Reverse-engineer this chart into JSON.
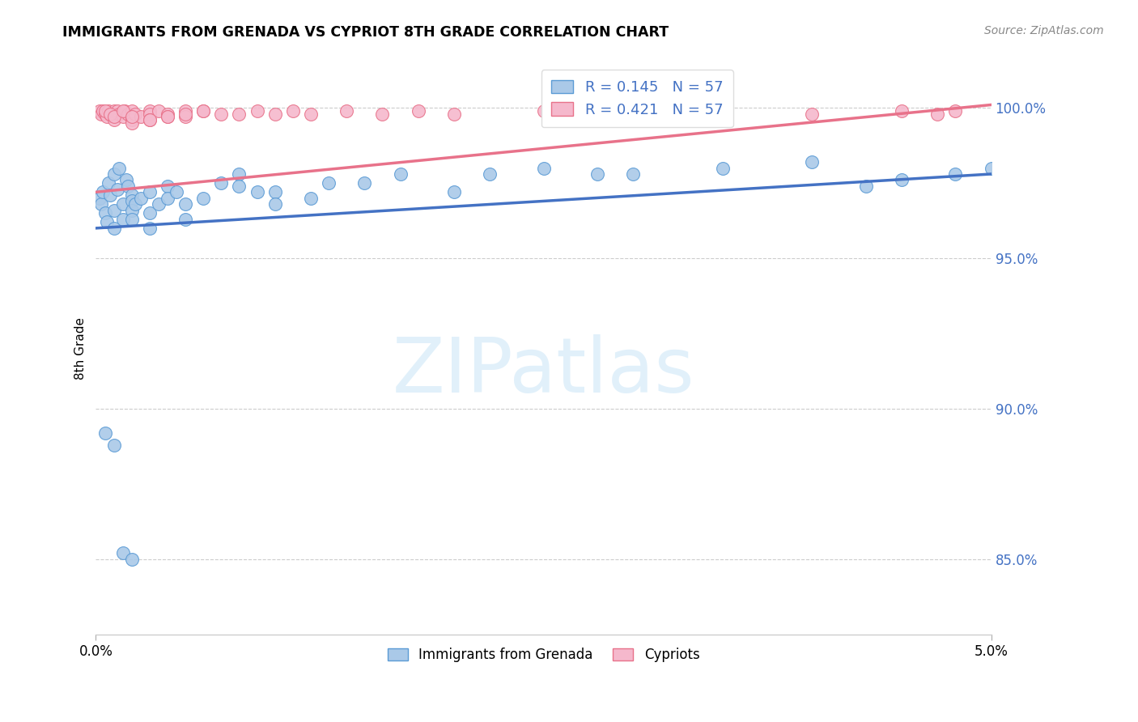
{
  "title": "IMMIGRANTS FROM GRENADA VS CYPRIOT 8TH GRADE CORRELATION CHART",
  "source": "Source: ZipAtlas.com",
  "ylabel": "8th Grade",
  "legend_blue_label": "Immigrants from Grenada",
  "legend_pink_label": "Cypriots",
  "R_blue": 0.145,
  "N_blue": 57,
  "R_pink": 0.421,
  "N_pink": 57,
  "blue_color": "#aac9e8",
  "pink_color": "#f5b8cc",
  "blue_edge_color": "#5b9bd5",
  "pink_edge_color": "#e8728a",
  "blue_line_color": "#4472c4",
  "pink_line_color": "#e8728a",
  "xlim": [
    0.0,
    0.05
  ],
  "ylim": [
    0.825,
    1.015
  ],
  "yticks": [
    0.85,
    0.9,
    0.95,
    1.0
  ],
  "ytick_labels": [
    "85.0%",
    "90.0%",
    "95.0%",
    "100.0%"
  ],
  "xticks": [
    0.0,
    0.05
  ],
  "xtick_labels": [
    "0.0%",
    "5.0%"
  ],
  "blue_x": [
    0.0002,
    0.0003,
    0.0004,
    0.0005,
    0.0006,
    0.0007,
    0.0008,
    0.001,
    0.001,
    0.001,
    0.0012,
    0.0013,
    0.0015,
    0.0015,
    0.0017,
    0.0018,
    0.002,
    0.002,
    0.002,
    0.002,
    0.0022,
    0.0025,
    0.003,
    0.003,
    0.003,
    0.0035,
    0.004,
    0.004,
    0.0045,
    0.005,
    0.005,
    0.006,
    0.007,
    0.008,
    0.008,
    0.009,
    0.01,
    0.01,
    0.012,
    0.013,
    0.015,
    0.017,
    0.02,
    0.022,
    0.025,
    0.028,
    0.03,
    0.035,
    0.04,
    0.043,
    0.045,
    0.048,
    0.05,
    0.0005,
    0.001,
    0.0015,
    0.002
  ],
  "blue_y": [
    0.97,
    0.968,
    0.972,
    0.965,
    0.962,
    0.975,
    0.971,
    0.978,
    0.966,
    0.96,
    0.973,
    0.98,
    0.968,
    0.963,
    0.976,
    0.974,
    0.971,
    0.969,
    0.966,
    0.963,
    0.968,
    0.97,
    0.972,
    0.965,
    0.96,
    0.968,
    0.974,
    0.97,
    0.972,
    0.968,
    0.963,
    0.97,
    0.975,
    0.978,
    0.974,
    0.972,
    0.972,
    0.968,
    0.97,
    0.975,
    0.975,
    0.978,
    0.972,
    0.978,
    0.98,
    0.978,
    0.978,
    0.98,
    0.982,
    0.974,
    0.976,
    0.978,
    0.98,
    0.892,
    0.888,
    0.852,
    0.85
  ],
  "pink_x": [
    0.0002,
    0.0003,
    0.0004,
    0.0005,
    0.0006,
    0.0007,
    0.0008,
    0.001,
    0.001,
    0.001,
    0.001,
    0.0012,
    0.0013,
    0.0015,
    0.0016,
    0.0018,
    0.002,
    0.002,
    0.002,
    0.002,
    0.0022,
    0.0025,
    0.003,
    0.003,
    0.003,
    0.0035,
    0.004,
    0.004,
    0.005,
    0.005,
    0.006,
    0.007,
    0.008,
    0.009,
    0.01,
    0.011,
    0.012,
    0.014,
    0.016,
    0.018,
    0.02,
    0.025,
    0.03,
    0.035,
    0.04,
    0.045,
    0.047,
    0.048,
    0.0005,
    0.0008,
    0.001,
    0.0015,
    0.002,
    0.003,
    0.004,
    0.005,
    0.006
  ],
  "pink_y": [
    0.999,
    0.998,
    0.999,
    0.998,
    0.997,
    0.999,
    0.998,
    0.999,
    0.998,
    0.997,
    0.996,
    0.999,
    0.998,
    0.997,
    0.999,
    0.998,
    0.999,
    0.997,
    0.996,
    0.995,
    0.998,
    0.997,
    0.999,
    0.998,
    0.996,
    0.999,
    0.998,
    0.997,
    0.999,
    0.997,
    0.999,
    0.998,
    0.998,
    0.999,
    0.998,
    0.999,
    0.998,
    0.999,
    0.998,
    0.999,
    0.998,
    0.999,
    0.998,
    0.999,
    0.998,
    0.999,
    0.998,
    0.999,
    0.999,
    0.998,
    0.997,
    0.999,
    0.997,
    0.996,
    0.997,
    0.998,
    0.999
  ],
  "blue_line_x0": 0.0,
  "blue_line_x1": 0.05,
  "blue_line_y0": 0.96,
  "blue_line_y1": 0.978,
  "pink_line_x0": 0.0,
  "pink_line_x1": 0.05,
  "pink_line_y0": 0.972,
  "pink_line_y1": 1.001,
  "watermark_text": "ZIPatlas",
  "watermark_zip_color": "#c8dff0",
  "watermark_atlas_color": "#a0c0e8"
}
